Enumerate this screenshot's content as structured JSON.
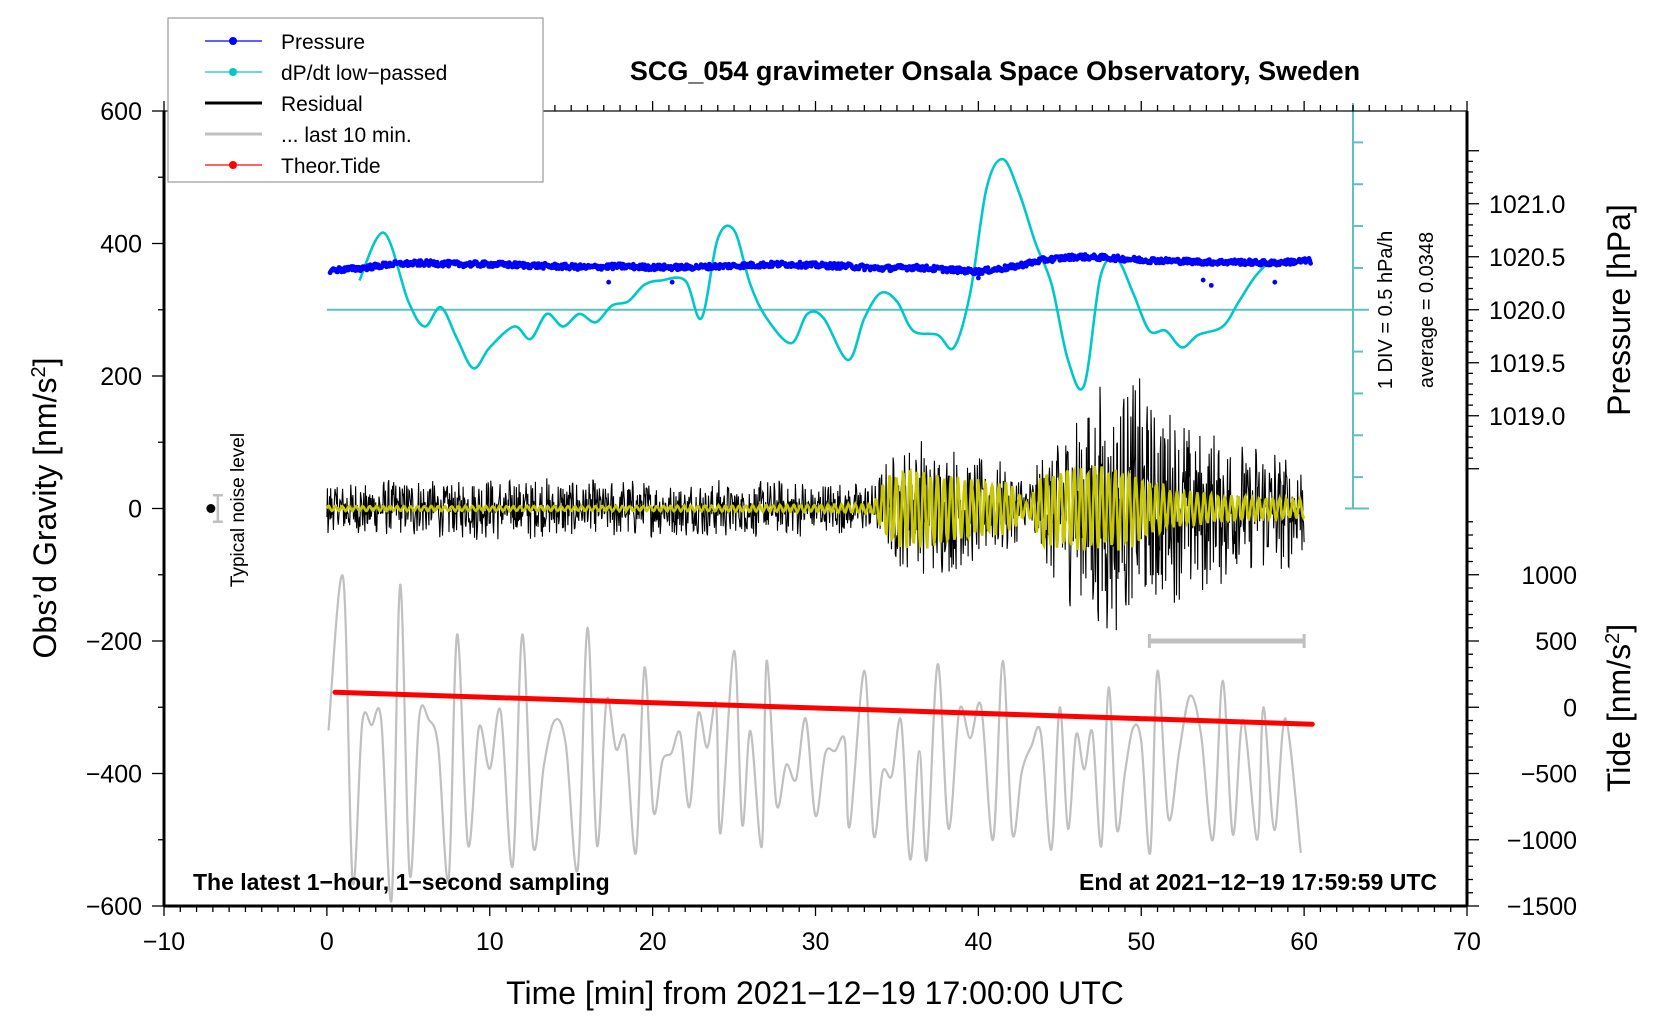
{
  "chart_data": {
    "type": "line",
    "title": "SCG_054 gravimeter Onsala Space Observatory, Sweden",
    "xlabel": "Time [min] from 2021−12−19 17:00:00 UTC",
    "ylabel_left": "Obs’d Gravity [nm/s²]",
    "ylabel_right_top": "Pressure [hPa]",
    "ylabel_right_bottom": "Tide [nm/s²]",
    "xlim": [
      -10,
      70
    ],
    "ylim": [
      -600,
      600
    ],
    "x_ticks": [
      "−10",
      "0",
      "10",
      "20",
      "30",
      "40",
      "50",
      "60",
      "70"
    ],
    "x_tick_values": [
      -10,
      0,
      10,
      20,
      30,
      40,
      50,
      60,
      70
    ],
    "y_ticks": [
      "600",
      "400",
      "200",
      "0",
      "−200",
      "−400",
      "−600"
    ],
    "y_tick_values": [
      600,
      400,
      200,
      0,
      -200,
      -400,
      -600
    ],
    "pressure_axis": {
      "ticks": [
        "1021.0",
        "1020.5",
        "1020.0",
        "1019.5",
        "1019.0"
      ],
      "tick_values": [
        1021.0,
        1020.5,
        1020.0,
        1019.5,
        1019.0
      ],
      "ref_hpa": 1020.0,
      "ref_gravity": 300,
      "hpa_per_100_gravity": 0.625
    },
    "tide_axis": {
      "ticks": [
        "1000",
        "500",
        "0",
        "−500",
        "−1000",
        "−1500"
      ],
      "tick_values": [
        1000,
        500,
        0,
        -500,
        -1000,
        -1500
      ],
      "ref_tide": 0,
      "ref_gravity": -300,
      "tide_per_gravity": 5
    },
    "grid": false,
    "legend_position": "top-left",
    "legend": [
      {
        "label": "Pressure",
        "color": "#0000ff",
        "style": "line-dot"
      },
      {
        "label": "dP/dt low−passed",
        "color": "#00c8c8",
        "style": "line-dot"
      },
      {
        "label": "Residual",
        "color": "#000000",
        "style": "line"
      },
      {
        "label": "... last 10 min.",
        "color": "#c0c0c0",
        "style": "line"
      },
      {
        "label": "Theor.Tide",
        "color": "#ff0000",
        "style": "line-dot"
      }
    ],
    "series": [
      {
        "name": "Pressure",
        "units": "hPa",
        "color": "#0000ff",
        "x": [
          0,
          2,
          4,
          6,
          8,
          10,
          12,
          14,
          16,
          18,
          20,
          22,
          24,
          26,
          28,
          30,
          32,
          34,
          36,
          38,
          40,
          42,
          44,
          46,
          48,
          50,
          52,
          54,
          56,
          58,
          60
        ],
        "values": [
          1020.37,
          1020.39,
          1020.43,
          1020.44,
          1020.43,
          1020.43,
          1020.42,
          1020.41,
          1020.4,
          1020.41,
          1020.4,
          1020.4,
          1020.41,
          1020.42,
          1020.43,
          1020.42,
          1020.41,
          1020.39,
          1020.4,
          1020.38,
          1020.36,
          1020.4,
          1020.47,
          1020.5,
          1020.49,
          1020.47,
          1020.46,
          1020.45,
          1020.45,
          1020.44,
          1020.46
        ]
      },
      {
        "name": "dP/dt low-passed",
        "units": "hPa/h (1 DIV = 0.5 hPa/h, baseline = average)",
        "color": "#00c8c8",
        "x": [
          2,
          3.5,
          5,
          6,
          7,
          8,
          9,
          10,
          11.5,
          12.5,
          13.5,
          14.5,
          15.5,
          16.5,
          17.5,
          18.5,
          19.5,
          20.5,
          22,
          23,
          24,
          25,
          26,
          27,
          28.5,
          29.5,
          30.5,
          32,
          33,
          34,
          35,
          36,
          37.5,
          38.5,
          39.5,
          40.5,
          41.5,
          42.5,
          43.5,
          44.5,
          45.5,
          46.5,
          47.5,
          48.5,
          49.5,
          50.5,
          51.5,
          52.5,
          53.5,
          55,
          56,
          57,
          58
        ],
        "values": [
          0.35,
          0.92,
          0.1,
          -0.2,
          0.03,
          -0.35,
          -0.7,
          -0.45,
          -0.2,
          -0.35,
          -0.05,
          -0.2,
          -0.05,
          -0.15,
          0.05,
          0.1,
          0.3,
          0.35,
          0.35,
          -0.1,
          0.85,
          0.95,
          0.3,
          -0.1,
          -0.4,
          -0.05,
          -0.1,
          -0.6,
          -0.1,
          0.2,
          0.1,
          -0.25,
          -0.3,
          -0.45,
          0.2,
          1.45,
          1.8,
          1.4,
          0.8,
          0.3,
          -0.6,
          -0.9,
          0.4,
          0.6,
          0.2,
          -0.25,
          -0.25,
          -0.45,
          -0.3,
          -0.2,
          0.1,
          0.4,
          0.6
        ]
      },
      {
        "name": "Residual",
        "units": "nm/s²",
        "color": "#000000",
        "x_range": [
          0,
          60
        ],
        "envelope_x": [
          0,
          10,
          20,
          30,
          33.5,
          34.5,
          37,
          40,
          42,
          43,
          45,
          48,
          50,
          52,
          56,
          60
        ],
        "envelope_amplitude": [
          45,
          50,
          45,
          45,
          40,
          80,
          120,
          80,
          70,
          45,
          140,
          210,
          200,
          150,
          110,
          95
        ]
      },
      {
        "name": "Residual (low-passed)",
        "units": "nm/s²",
        "color": "#c8c800",
        "x_range": [
          0,
          60
        ],
        "envelope_x": [
          0,
          20,
          30,
          33.5,
          34.5,
          36,
          39,
          42,
          43,
          44,
          47,
          49,
          50,
          52,
          56,
          60
        ],
        "envelope_amplitude": [
          4,
          4,
          6,
          8,
          55,
          65,
          50,
          40,
          8,
          60,
          70,
          65,
          55,
          30,
          20,
          15
        ]
      },
      {
        "name": "... last 10 min.",
        "units": "nm/s² (time-stretched)",
        "color": "#c0c0c0",
        "x_range": [
          0,
          60
        ],
        "center_gravity": -380,
        "peak_x": [
          1,
          4.5,
          8,
          12,
          16,
          19.5,
          25,
          27,
          33,
          37.5,
          41.5,
          45,
          48,
          51,
          55,
          57.5
        ],
        "peak_values": [
          -105,
          -115,
          -190,
          -190,
          -180,
          -240,
          -215,
          -230,
          -245,
          -235,
          -230,
          -300,
          -270,
          -245,
          -260,
          -300
        ],
        "trough_values": [
          -590,
          -560,
          -540,
          -545,
          -520,
          -490,
          -510,
          -480,
          -530,
          -500,
          -515,
          -510,
          -520,
          -500,
          -500,
          -520
        ]
      },
      {
        "name": "Theor.Tide",
        "units": "nm/s² (tide axis)",
        "color": "#ff0000",
        "x": [
          0.5,
          60.5
        ],
        "values": [
          113,
          -128
        ]
      }
    ],
    "annotations": {
      "noise_label": "Typical noise level",
      "noise_point": {
        "x": -7,
        "gravity": 0,
        "error": 20
      },
      "last10_bar": {
        "x_start": 50.5,
        "x_end": 60,
        "gravity": -200
      },
      "scale_bar": {
        "x": 63,
        "baseline_gravity": 300,
        "div_label": "1 DIV = 0.5 hPa/h",
        "average_label": "average = 0.0348"
      },
      "bottom_left": "The latest 1−hour, 1−second sampling",
      "bottom_right": "End at 2021−12−19 17:59:59 UTC"
    }
  }
}
